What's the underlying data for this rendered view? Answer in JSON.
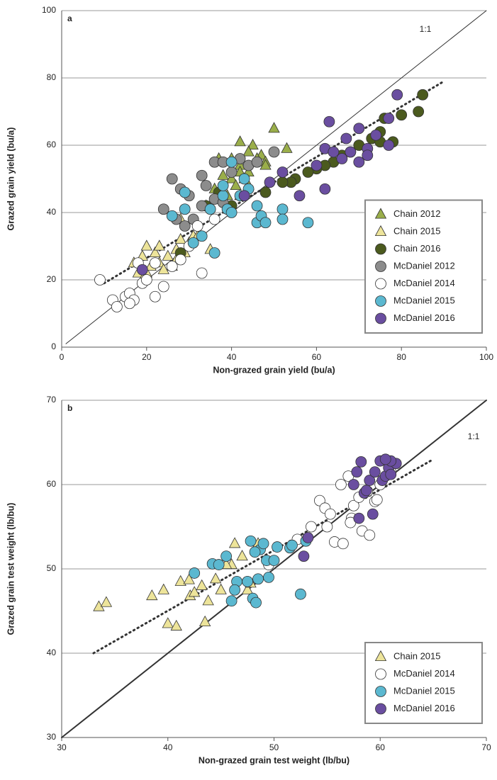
{
  "chart_data": [
    {
      "type": "scatter",
      "panel_label": "a",
      "annotation": "1:1",
      "xlabel": "Non-grazed grain yield (bu/a)",
      "ylabel": "Grazed grain yield (bu/a)",
      "xlim": [
        0,
        100
      ],
      "ylim": [
        0,
        100
      ],
      "xticks": [
        0,
        20,
        40,
        60,
        80,
        100
      ],
      "yticks": [
        0,
        20,
        40,
        60,
        80,
        100
      ],
      "grid": true,
      "legend": "lower right",
      "lines": [
        {
          "x": [
            1,
            100
          ],
          "y": [
            1,
            100
          ],
          "style": "solid"
        },
        {
          "x": [
            10,
            90
          ],
          "y": [
            19,
            79
          ],
          "style": "dotted"
        }
      ],
      "series": [
        {
          "name": "Chain 2012",
          "marker": "triangle",
          "color": "#9aae4a",
          "x": [
            42,
            45,
            50,
            53,
            37,
            40,
            42,
            44,
            47,
            48,
            38,
            40,
            42,
            43,
            44,
            39,
            42,
            44,
            46,
            48,
            41,
            36,
            34
          ],
          "y": [
            61,
            60,
            65,
            59,
            56,
            56,
            54,
            58,
            57,
            55,
            51,
            50,
            52,
            50,
            48,
            45,
            45,
            52,
            56,
            54,
            48,
            47,
            42
          ]
        },
        {
          "name": "Chain 2015",
          "marker": "triangle",
          "color": "#ede49a",
          "x": [
            17,
            19,
            20,
            22,
            23,
            20,
            21,
            23,
            25,
            27,
            28,
            30,
            31,
            26,
            24,
            18,
            19,
            27,
            29,
            32,
            35,
            28
          ],
          "y": [
            25,
            27,
            30,
            28,
            30,
            22,
            24,
            25,
            27,
            29,
            32,
            31,
            33,
            24,
            23,
            22,
            20,
            26,
            28,
            33,
            29,
            38
          ]
        },
        {
          "name": "Chain 2016",
          "marker": "circle",
          "color": "#4b5a1e",
          "x": [
            85,
            84,
            80,
            76,
            75,
            73,
            70,
            68,
            66,
            64,
            62,
            60,
            58,
            55,
            54,
            52,
            48,
            40,
            37,
            34,
            28,
            75,
            78
          ],
          "y": [
            75,
            70,
            69,
            68,
            64,
            62,
            60,
            58,
            57,
            55,
            54,
            53,
            52,
            50,
            49,
            49,
            46,
            42,
            46,
            42,
            28,
            61,
            61
          ]
        },
        {
          "name": "McDaniel 2012",
          "marker": "circle",
          "color": "#8c8c8c",
          "x": [
            26,
            28,
            24,
            30,
            33,
            34,
            36,
            38,
            40,
            42,
            44,
            50,
            36,
            33,
            31,
            29,
            27,
            38,
            46
          ],
          "y": [
            50,
            47,
            41,
            45,
            51,
            48,
            55,
            55,
            52,
            56,
            54,
            58,
            44,
            42,
            38,
            36,
            38,
            43,
            55
          ]
        },
        {
          "name": "McDaniel 2014",
          "marker": "circle",
          "color": "#ffffff",
          "x": [
            9,
            12,
            13,
            15,
            16,
            17,
            19,
            20,
            22,
            24,
            33,
            18,
            22,
            26,
            30,
            32,
            36,
            28,
            16
          ],
          "y": [
            20,
            14,
            12,
            15,
            16,
            14,
            19,
            20,
            15,
            18,
            22,
            25,
            25,
            24,
            30,
            36,
            38,
            26,
            13
          ]
        },
        {
          "name": "McDaniel 2015",
          "marker": "circle",
          "color": "#5bb8d0",
          "x": [
            29,
            26,
            29,
            31,
            35,
            36,
            38,
            39,
            40,
            42,
            43,
            38,
            40,
            44,
            46,
            46,
            47,
            48,
            52,
            52,
            58,
            33
          ],
          "y": [
            46,
            39,
            41,
            31,
            41,
            28,
            45,
            41,
            40,
            45,
            50,
            48,
            55,
            47,
            42,
            37,
            39,
            37,
            41,
            38,
            37,
            33
          ]
        },
        {
          "name": "McDaniel 2016",
          "marker": "circle",
          "color": "#6a4ea0",
          "x": [
            79,
            77,
            74,
            70,
            72,
            77,
            72,
            68,
            66,
            67,
            63,
            62,
            60,
            62,
            56,
            52,
            49,
            43,
            19,
            64,
            70
          ],
          "y": [
            75,
            68,
            63,
            65,
            59,
            60,
            57,
            58,
            56,
            62,
            67,
            59,
            54,
            47,
            45,
            52,
            49,
            45,
            23,
            58,
            55
          ]
        }
      ]
    },
    {
      "type": "scatter",
      "panel_label": "b",
      "annotation": "1:1",
      "xlabel": "Non-grazed grain test weight (lb/bu)",
      "ylabel": "Grazed grain test weight (lb/bu)",
      "xlim": [
        30,
        70
      ],
      "ylim": [
        30,
        70
      ],
      "xticks": [
        30,
        40,
        50,
        60,
        70
      ],
      "yticks": [
        30,
        40,
        50,
        60,
        70
      ],
      "grid": true,
      "legend": "lower right",
      "lines": [
        {
          "x": [
            30,
            70
          ],
          "y": [
            30,
            70
          ],
          "style": "solid"
        },
        {
          "x": [
            33,
            65
          ],
          "y": [
            40,
            63
          ],
          "style": "dotted"
        }
      ],
      "series": [
        {
          "name": "Chain 2015",
          "marker": "triangle",
          "color": "#ede49a",
          "x": [
            33.5,
            34.2,
            38.5,
            39.6,
            40,
            40.8,
            41.2,
            42,
            42.1,
            42.5,
            43.2,
            43.5,
            43.8,
            44.5,
            45,
            46,
            46.3,
            47,
            47.5,
            47.8,
            48.5,
            45.5
          ],
          "y": [
            45.5,
            46,
            46.8,
            47.5,
            43.5,
            43.2,
            48.5,
            48.7,
            46.8,
            47.2,
            48,
            43.7,
            46.2,
            48.8,
            47.5,
            50.5,
            53,
            51.5,
            47.5,
            48.3,
            53,
            50.5
          ]
        },
        {
          "name": "McDaniel 2014",
          "marker": "circle",
          "color": "#ffffff",
          "x": [
            52.2,
            53.5,
            54.3,
            54.8,
            55,
            55.3,
            55.7,
            56.3,
            56.5,
            57,
            57.3,
            57.5,
            58,
            58.3,
            58.8,
            59,
            59.5,
            60,
            59.7,
            61,
            57.2,
            49.5
          ],
          "y": [
            53.5,
            55,
            58.1,
            57.2,
            55,
            56.5,
            53.2,
            60,
            53,
            61,
            56,
            57.5,
            58.5,
            54.5,
            59.2,
            54,
            58,
            60,
            58.2,
            61.5,
            55.5,
            50.5
          ]
        },
        {
          "name": "McDaniel 2015",
          "marker": "circle",
          "color": "#5bb8d0",
          "x": [
            42.5,
            44.2,
            44.8,
            45.5,
            46,
            46.5,
            47.5,
            47.8,
            48,
            48.3,
            48.5,
            48.7,
            49,
            49.3,
            49.5,
            50,
            50.3,
            51.5,
            51.7,
            52.5,
            53,
            46.3,
            48.2
          ],
          "y": [
            49.5,
            50.6,
            50.5,
            51.5,
            46.2,
            48.5,
            48.5,
            53.3,
            46.5,
            46,
            48.8,
            52.3,
            53,
            51,
            49,
            51,
            52.6,
            52.5,
            52.8,
            47,
            53.3,
            47.5,
            52
          ]
        },
        {
          "name": "McDaniel 2016",
          "marker": "circle",
          "color": "#6a4ea0",
          "x": [
            52.8,
            53.2,
            57.5,
            57.8,
            58,
            58.2,
            58.5,
            59,
            59.3,
            60,
            60.2,
            60.5,
            60.8,
            61,
            61.5,
            61,
            59.5,
            60.5,
            58.7
          ],
          "y": [
            51.5,
            53.7,
            60,
            61.5,
            56,
            62.7,
            59,
            60.5,
            56.5,
            62.8,
            60.5,
            61,
            62,
            61.2,
            62.5,
            62.8,
            61.5,
            63,
            59.3
          ]
        }
      ]
    }
  ]
}
